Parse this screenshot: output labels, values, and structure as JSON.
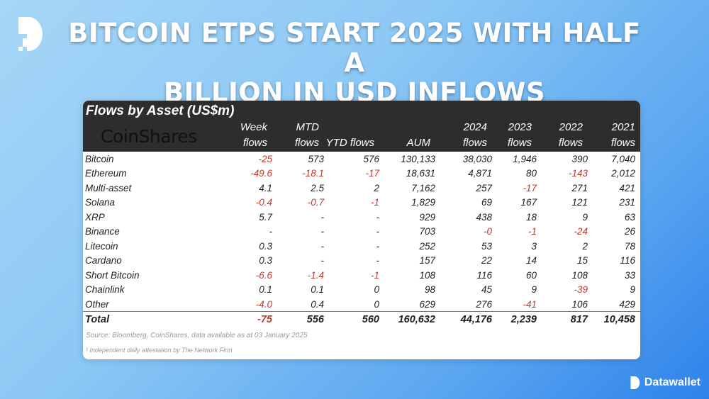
{
  "title": {
    "line1": "BITCOIN ETPS START 2025 WITH HALF A",
    "line2": "BILLION IN USD INFLOWS"
  },
  "table": {
    "title": "Flows by Asset (US$m)",
    "logo": "CoinShares",
    "headers": [
      [
        "Week",
        "flows"
      ],
      [
        "MTD",
        "flows"
      ],
      [
        "",
        "YTD flows"
      ],
      [
        "",
        "AUM"
      ],
      [
        "2024",
        "flows"
      ],
      [
        "2023",
        "flows"
      ],
      [
        "2022",
        "flows"
      ],
      [
        "2021",
        "flows"
      ]
    ],
    "rows": [
      [
        "Bitcoin",
        "-25",
        "573",
        "576",
        "130,133",
        "38,030",
        "1,946",
        "390",
        "7,040"
      ],
      [
        "Ethereum",
        "-49.6",
        "-18.1",
        "-17",
        "18,631",
        "4,871",
        "80",
        "-143",
        "2,012"
      ],
      [
        "Multi-asset",
        "4.1",
        "2.5",
        "2",
        "7,162",
        "257",
        "-17",
        "271",
        "421"
      ],
      [
        "Solana",
        "-0.4",
        "-0.7",
        "-1",
        "1,829",
        "69",
        "167",
        "121",
        "231"
      ],
      [
        "XRP",
        "5.7",
        "-",
        "-",
        "929",
        "438",
        "18",
        "9",
        "63"
      ],
      [
        "Binance",
        "-",
        "-",
        "-",
        "703",
        "-0",
        "-1",
        "-24",
        "26"
      ],
      [
        "Litecoin",
        "0.3",
        "-",
        "-",
        "252",
        "53",
        "3",
        "2",
        "78"
      ],
      [
        "Cardano",
        "0.3",
        "-",
        "-",
        "157",
        "22",
        "14",
        "15",
        "116"
      ],
      [
        "Short Bitcoin",
        "-6.6",
        "-1.4",
        "-1",
        "108",
        "116",
        "60",
        "108",
        "33"
      ],
      [
        "Chainlink",
        "0.1",
        "0.1",
        "0",
        "98",
        "45",
        "9",
        "-39",
        "9"
      ],
      [
        "Other",
        "-4.0",
        "0.4",
        "0",
        "629",
        "276",
        "-41",
        "106",
        "429"
      ]
    ],
    "total": [
      "Total",
      "-75",
      "556",
      "560",
      "160,632",
      "44,176",
      "2,239",
      "817",
      "10,458"
    ],
    "source": "Source: Bloomberg, CoinShares, data available as at 03 January 2025",
    "note": "¹ Independent daily attestation by The Network Firm"
  },
  "brand": {
    "name": "Datawallet"
  },
  "colors": {
    "negative": "#c0392b",
    "header_bg": "#2d2d2d"
  }
}
